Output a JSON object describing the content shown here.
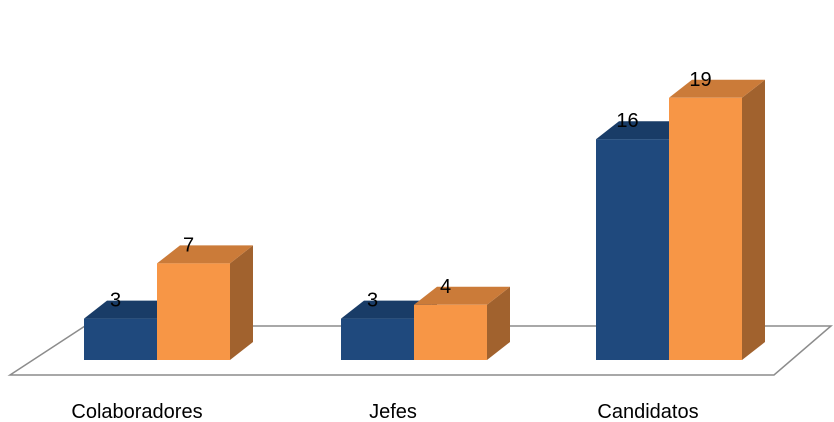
{
  "chart_data": {
    "type": "bar",
    "style": "3d-clustered-column",
    "categories": [
      "Colaboradores",
      "Jefes",
      "Candidatos"
    ],
    "series": [
      {
        "values": [
          3,
          3,
          16
        ],
        "color": "#1F497D"
      },
      {
        "values": [
          7,
          4,
          19
        ],
        "color": "#F79646"
      }
    ],
    "data_labels": true,
    "grid": false,
    "legend": "none",
    "title": "",
    "xlabel": "",
    "ylabel": ""
  }
}
